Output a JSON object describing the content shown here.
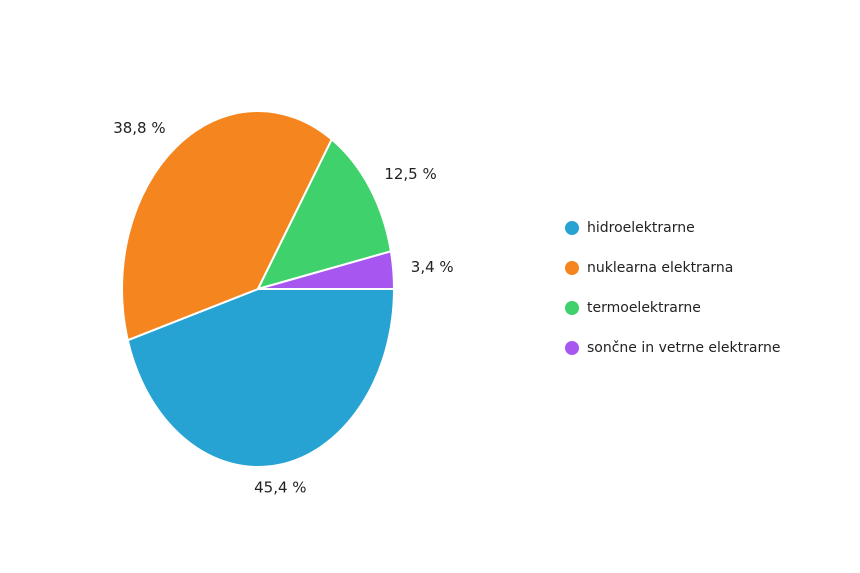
{
  "chart_data": {
    "type": "pie",
    "categories": [
      "hidroelektrarne",
      "nuklearna elektrarna",
      "termoelektrarne",
      "sončne in vetrne elektrarne"
    ],
    "values": [
      45.4,
      38.8,
      12.5,
      3.4
    ],
    "value_labels": [
      "45,4 %",
      "38,8 %",
      "12,5 %",
      "3,4 %"
    ],
    "colors": [
      "#27a3d3",
      "#f5861f",
      "#3fd16b",
      "#a757f0"
    ],
    "legend": "right"
  }
}
